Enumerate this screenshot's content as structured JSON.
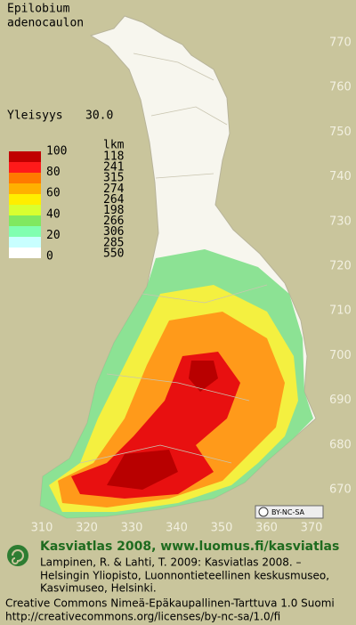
{
  "title": [
    "Epilobium",
    "adenocaulon"
  ],
  "frequency": {
    "label": "Yleisyys",
    "value": "30.0"
  },
  "legend": {
    "scale": [
      "100",
      "80",
      "60",
      "40",
      "20",
      "0"
    ],
    "count_header": "lkm",
    "counts": [
      "118",
      "241",
      "315",
      "274",
      "264",
      "198",
      "266",
      "306",
      "285",
      "550"
    ]
  },
  "grid": {
    "north": [
      "770",
      "760",
      "750",
      "740",
      "730",
      "720",
      "710",
      "700",
      "690",
      "680",
      "670"
    ],
    "east": [
      "310",
      "320",
      "330",
      "340",
      "350",
      "360",
      "370"
    ]
  },
  "license_badge": "BY-NC-SA",
  "footer": {
    "heading": "Kasviatlas 2008, www.luomus.fi/kasviatlas",
    "citation": [
      "Lampinen, R. & Lahti, T. 2009: Kasviatlas 2008. –",
      "Helsingin Yliopisto, Luonnontieteellinen keskusmuseo,",
      "Kasvimuseo, Helsinki."
    ],
    "license": [
      "Creative Commons Nimeä-Epäkaupallinen-Tarttuva 1.0 Suomi",
      "http://creativecommons.org/licenses/by-nc-sa/1.0/fi"
    ]
  }
}
